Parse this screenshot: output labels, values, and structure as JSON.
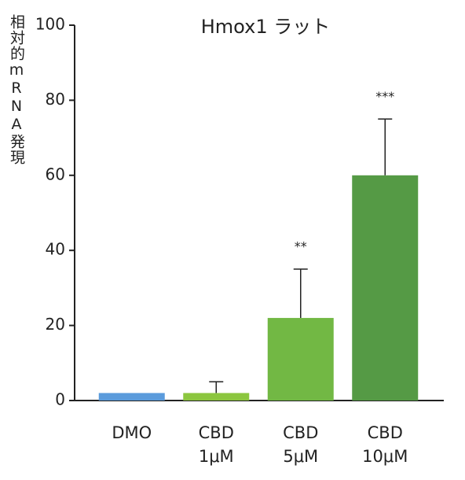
{
  "chart_data": {
    "type": "bar",
    "title": "Hmox1 ラット",
    "y_label": "相対的mRNA発現",
    "categories": [
      [
        "DMO"
      ],
      [
        "CBD",
        "1μM"
      ],
      [
        "CBD",
        "5μM"
      ],
      [
        "CBD",
        "10μM"
      ]
    ],
    "values": [
      2,
      2,
      22,
      60
    ],
    "errors": [
      null,
      3,
      13,
      15
    ],
    "annotations": [
      null,
      null,
      "**",
      "***"
    ],
    "colors": [
      "#5b9bdc",
      "#8cc63f",
      "#72b844",
      "#559a45"
    ],
    "ylim": [
      0,
      100
    ],
    "yticks": [
      0,
      20,
      40,
      60,
      80,
      100
    ]
  }
}
